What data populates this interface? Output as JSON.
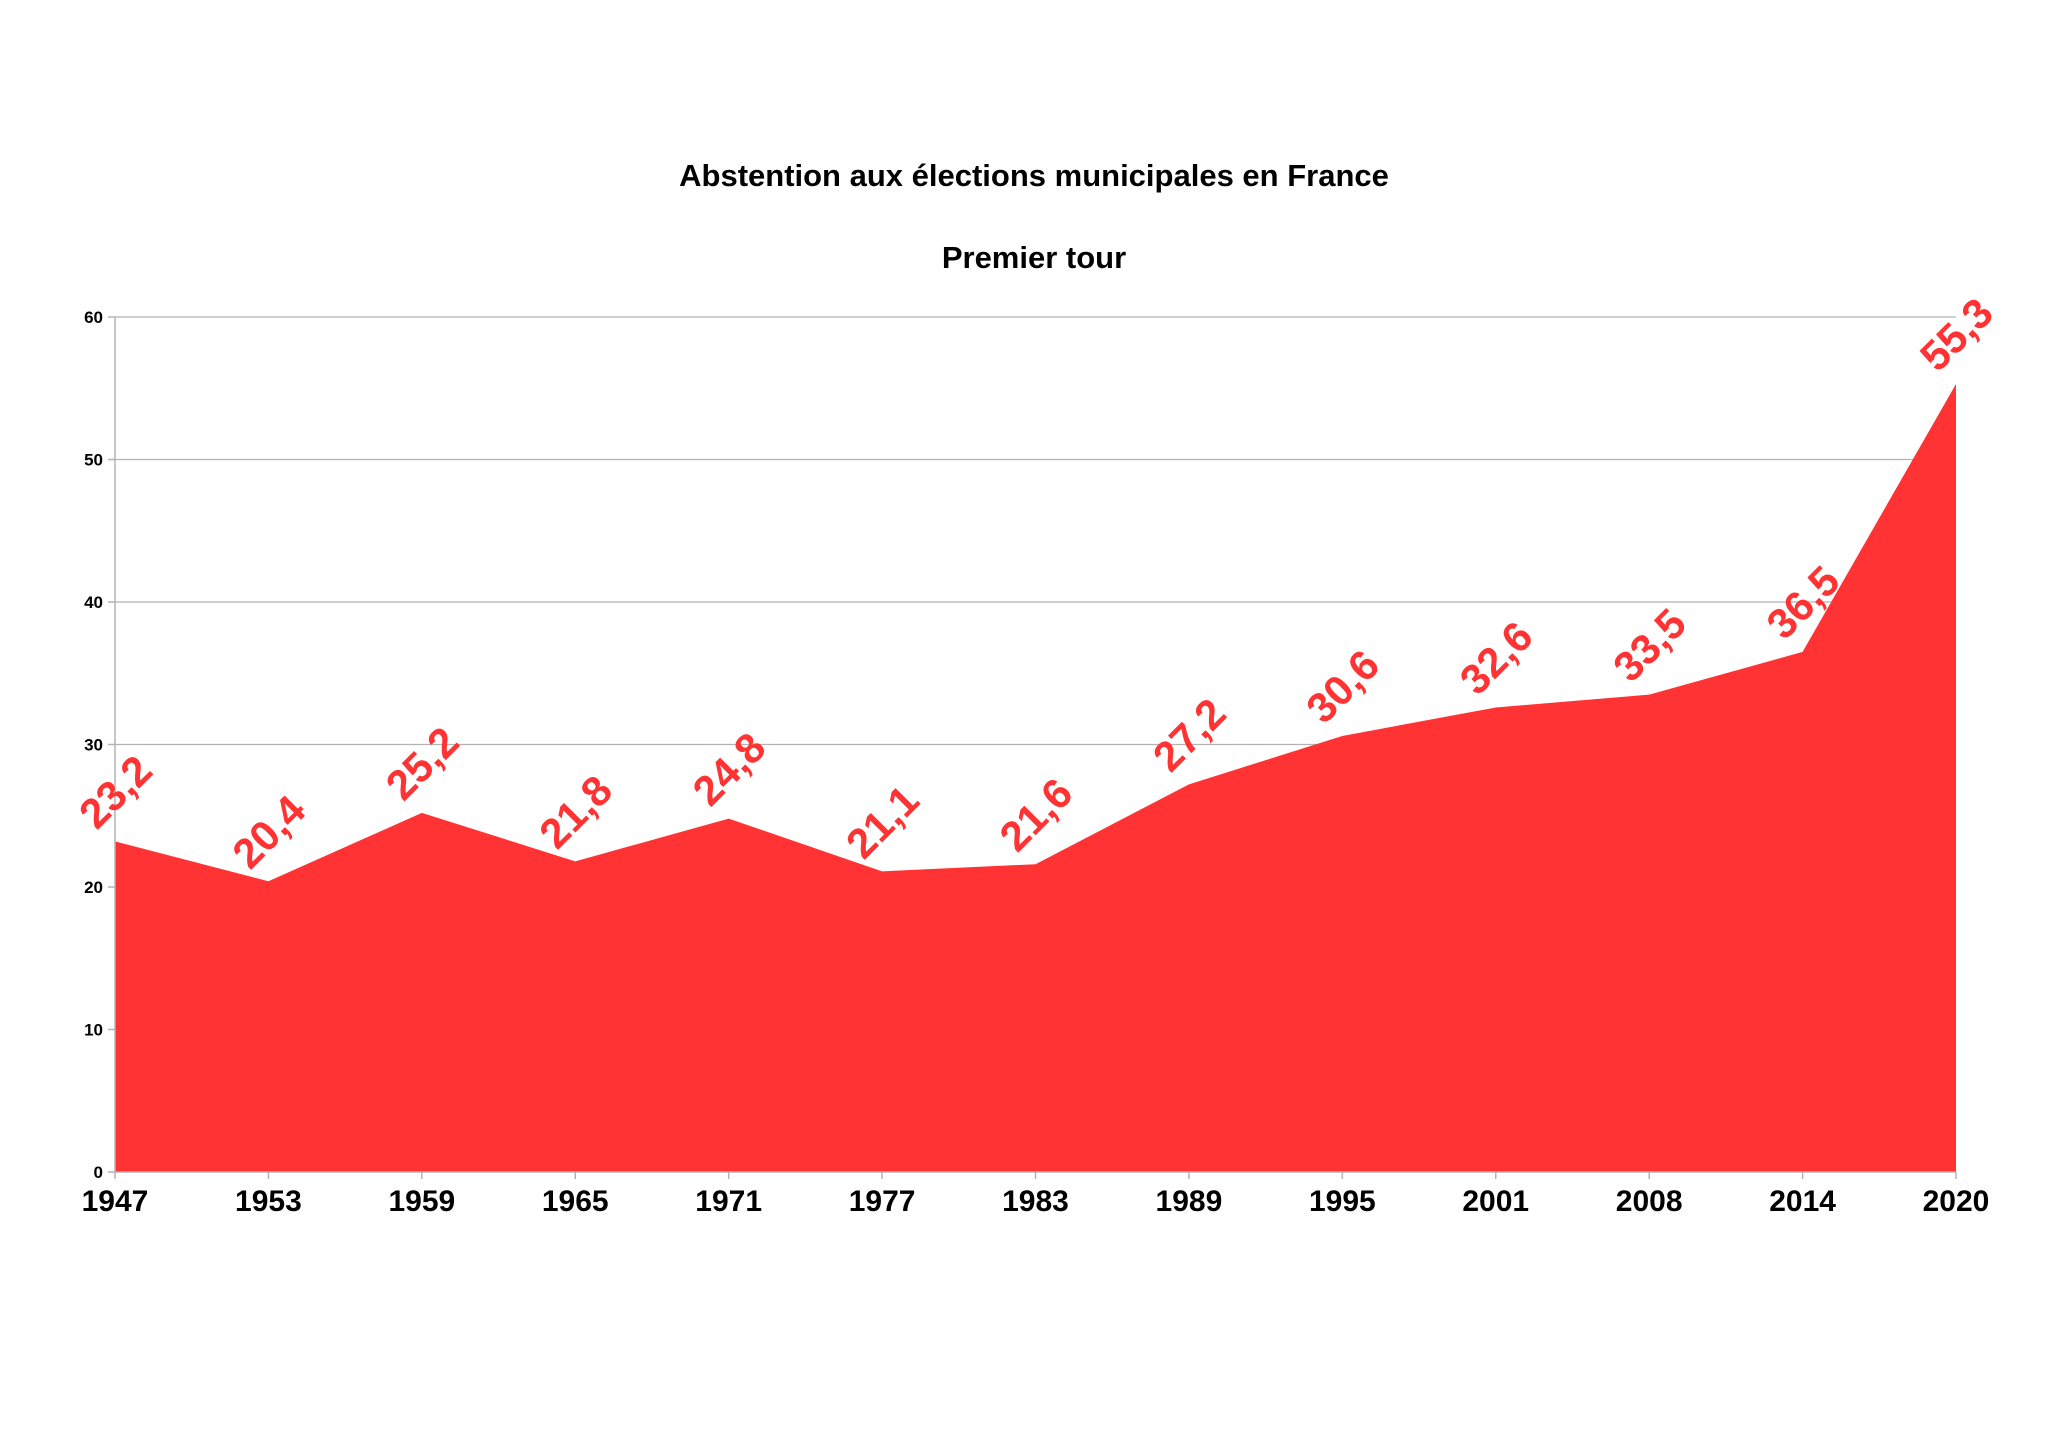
{
  "chart_data": {
    "type": "area",
    "title": "Abstention aux élections municipales en France",
    "subtitle": "Premier tour",
    "xlabel": "",
    "ylabel": "",
    "categories": [
      "1947",
      "1953",
      "1959",
      "1965",
      "1971",
      "1977",
      "1983",
      "1989",
      "1995",
      "2001",
      "2008",
      "2014",
      "2020"
    ],
    "values": [
      23.2,
      20.4,
      25.2,
      21.8,
      24.8,
      21.1,
      21.6,
      27.2,
      30.6,
      32.6,
      33.5,
      36.5,
      55.3
    ],
    "ylim": [
      0,
      60
    ],
    "yticks": [
      0,
      10,
      20,
      30,
      40,
      50,
      60
    ],
    "grid": true,
    "legend": "none",
    "data_labels": true,
    "decimal_separator": ",",
    "colors": {
      "area": "#ff3333",
      "data_label": "#ff3333",
      "grid": "#b3b3b3",
      "axis": "#b3b3b3",
      "text": "#000000"
    }
  }
}
